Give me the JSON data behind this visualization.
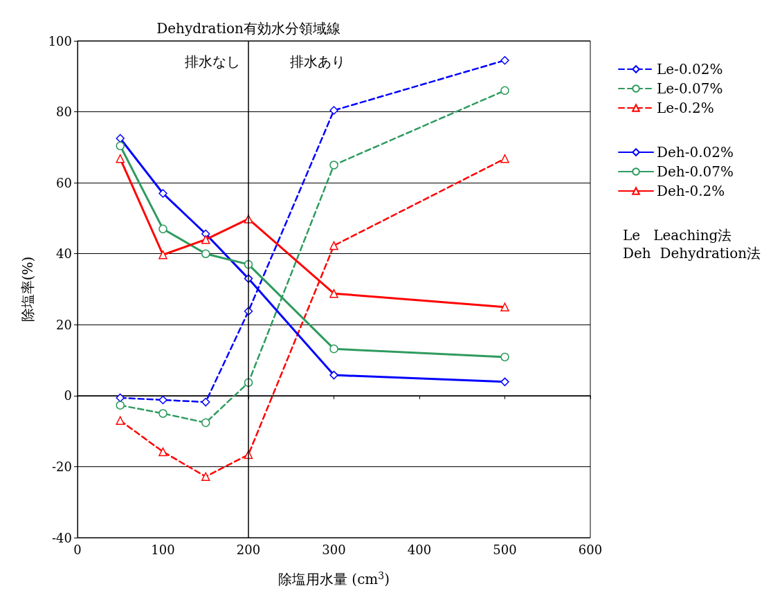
{
  "chart_data": {
    "type": "line",
    "xlabel": "除塩用水量 (cm$^{3}$)",
    "ylabel": "除塩率(%)",
    "x": [
      50,
      100,
      150,
      200,
      300,
      500
    ],
    "xlim": [
      0,
      600
    ],
    "xticks": [
      0,
      100,
      200,
      300,
      400,
      500,
      600
    ],
    "ylim": [
      -40,
      100
    ],
    "yticks": [
      -40,
      -20,
      0,
      20,
      40,
      60,
      80,
      100
    ],
    "grid": "y",
    "legend": "right",
    "series": [
      {
        "name": "Le-0.02%",
        "color": "#0000ff",
        "marker": "diamond",
        "line_style": "dashed",
        "values": [
          -0.6,
          -1.2,
          -1.8,
          23.8,
          80.4,
          94.5
        ]
      },
      {
        "name": "Le-0.07%",
        "color": "#2e9b5e",
        "marker": "circle",
        "line_style": "dashed",
        "values": [
          -2.7,
          -5,
          -7.6,
          3.7,
          65,
          86
        ]
      },
      {
        "name": "Le-0.2%",
        "color": "#ff0000",
        "marker": "triangle",
        "line_style": "dashed",
        "values": [
          -7,
          -15.8,
          -22.8,
          -16.6,
          42.3,
          66.8
        ]
      },
      {
        "name": "Deh-0.02%",
        "color": "#0000ff",
        "marker": "diamond",
        "line_style": "solid",
        "values": [
          72.5,
          57,
          45.6,
          33,
          5.8,
          3.9
        ]
      },
      {
        "name": "Deh-0.07%",
        "color": "#2e9b5e",
        "marker": "circle",
        "line_style": "solid",
        "values": [
          70.4,
          47,
          40,
          37,
          13.2,
          10.9
        ]
      },
      {
        "name": "Deh-0.2%",
        "color": "#ff0000",
        "marker": "triangle",
        "line_style": "solid",
        "values": [
          66.8,
          39.7,
          44,
          49.8,
          28.8,
          25
        ]
      }
    ],
    "ref_lines": [
      {
        "axis": "x",
        "value": 200,
        "label": "Dehydration有効水分領域線",
        "color": "#000000"
      }
    ],
    "annotations": [
      "排水なし",
      "排水あり",
      "Le   Leaching法",
      "Deh  Dehydration法"
    ]
  }
}
